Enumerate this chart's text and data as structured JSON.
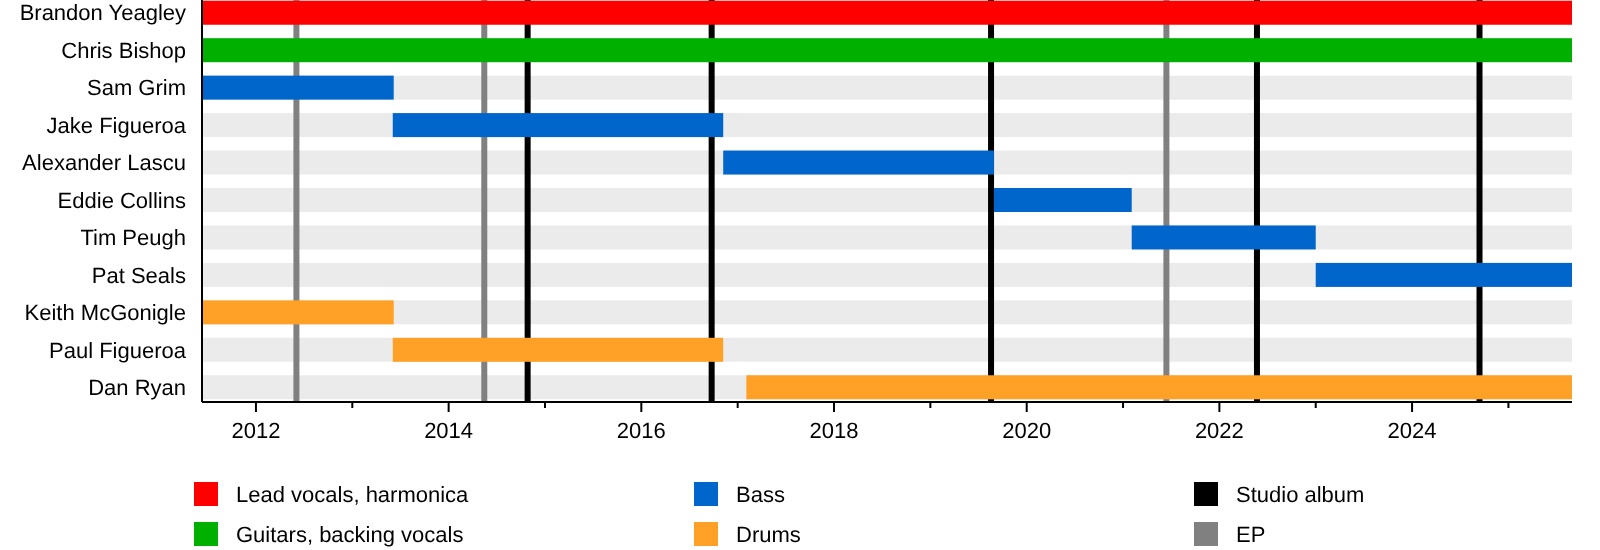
{
  "chart_data": {
    "type": "bar",
    "orientation": "horizontal",
    "categories": [
      "Brandon Yeagley",
      "Chris Bishop",
      "Sam Grim",
      "Jake Figueroa",
      "Alexander Lascu",
      "Eddie Collins",
      "Tim Peugh",
      "Pat Seals",
      "Keith McGonigle",
      "Paul Figueroa",
      "Dan Ryan"
    ],
    "series": [
      {
        "name": "Lead vocals, harmonica",
        "color": "#ff0000",
        "base": [
          2011.44,
          null,
          null,
          null,
          null,
          null,
          null,
          null,
          null,
          null,
          null
        ],
        "values": [
          14.22,
          null,
          null,
          null,
          null,
          null,
          null,
          null,
          null,
          null,
          null
        ]
      },
      {
        "name": "Guitars, backing vocals",
        "color": "#00b000",
        "base": [
          null,
          2011.44,
          null,
          null,
          null,
          null,
          null,
          null,
          null,
          null,
          null
        ],
        "values": [
          null,
          14.22,
          null,
          null,
          null,
          null,
          null,
          null,
          null,
          null,
          null
        ]
      },
      {
        "name": "Bass",
        "color": "#0066cc",
        "base": [
          null,
          null,
          2011.44,
          2013.42,
          2016.85,
          2019.66,
          2021.09,
          2023.0,
          null,
          null,
          null
        ],
        "values": [
          null,
          null,
          1.99,
          3.43,
          2.81,
          1.43,
          1.91,
          2.66,
          null,
          null,
          null
        ]
      },
      {
        "name": "Drums",
        "color": "#ffa126",
        "base": [
          null,
          null,
          null,
          null,
          null,
          null,
          null,
          null,
          2011.44,
          2013.42,
          2017.09
        ],
        "values": [
          null,
          null,
          null,
          null,
          null,
          null,
          null,
          null,
          1.99,
          3.43,
          8.57
        ]
      }
    ],
    "xlim": [
      2011.44,
      2025.66
    ],
    "xticks": [
      2012,
      {
        "value": 2013,
        "label": null
      },
      2014,
      {
        "value": 2015,
        "label": null
      },
      2016,
      {
        "value": 2017,
        "label": null
      },
      2018,
      {
        "value": 2019,
        "label": null
      },
      2020,
      {
        "value": 2021,
        "label": null
      },
      2022,
      {
        "value": 2023,
        "label": null
      },
      2024,
      {
        "value": 2025,
        "label": null
      }
    ],
    "ref_lines": [
      {
        "axis": "x",
        "value": 2012.42,
        "label": "EP",
        "color": "#808080"
      },
      {
        "axis": "x",
        "value": 2014.37,
        "color": "#808080"
      },
      {
        "axis": "x",
        "value": 2014.82,
        "label": "Studio album",
        "color": "#000000"
      },
      {
        "axis": "x",
        "value": 2016.73,
        "color": "#000000"
      },
      {
        "axis": "x",
        "value": 2019.63,
        "color": "#000000"
      },
      {
        "axis": "x",
        "value": 2021.45,
        "color": "#808080"
      },
      {
        "axis": "x",
        "value": 2022.39,
        "color": "#000000"
      },
      {
        "axis": "x",
        "value": 2024.7,
        "color": "#000000"
      }
    ],
    "grid": "y",
    "legend": "bottom"
  }
}
